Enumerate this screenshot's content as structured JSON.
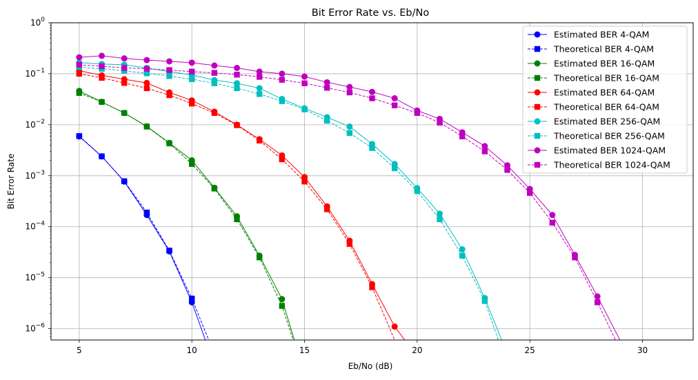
{
  "chart_data": {
    "type": "line",
    "title": "Bit Error Rate vs. Eb/No",
    "xlabel": "Eb/No (dB)",
    "ylabel": "Bit Error Rate",
    "xscale": "linear",
    "yscale": "log",
    "xlim": [
      3.75,
      32.25
    ],
    "ylim": [
      6e-07,
      1
    ],
    "xticks": [
      5,
      10,
      15,
      20,
      25,
      30
    ],
    "yticks": [
      {
        "value": 1e-06,
        "base": "10",
        "exp": "−6"
      },
      {
        "value": 1e-05,
        "base": "10",
        "exp": "−5"
      },
      {
        "value": 0.0001,
        "base": "10",
        "exp": "−4"
      },
      {
        "value": 0.001,
        "base": "10",
        "exp": "−3"
      },
      {
        "value": 0.01,
        "base": "10",
        "exp": "−2"
      },
      {
        "value": 0.1,
        "base": "10",
        "exp": "−1"
      },
      {
        "value": 1,
        "base": "10",
        "exp": "0"
      }
    ],
    "grid": true,
    "legend_position": "top-right",
    "series": [
      {
        "name": "Estimated BER 4-QAM",
        "color": "#0000ff",
        "dash": "solid",
        "marker": "circle",
        "x": [
          5,
          6,
          7,
          8,
          9,
          10,
          10.6
        ],
        "y": [
          0.0059,
          0.0024,
          0.00077,
          0.00017,
          3.3e-05,
          3.3e-06,
          6e-07
        ]
      },
      {
        "name": "Theoretical BER 4-QAM",
        "color": "#0000ff",
        "dash": "dashed",
        "marker": "square",
        "x": [
          5,
          6,
          7,
          8,
          9,
          10,
          10.75
        ],
        "y": [
          0.006,
          0.0024,
          0.00078,
          0.00019,
          3.4e-05,
          3.9e-06,
          6e-07
        ]
      },
      {
        "name": "Estimated BER 16-QAM",
        "color": "#008000",
        "dash": "solid",
        "marker": "circle",
        "x": [
          5,
          6,
          7,
          8,
          9,
          10,
          11,
          12,
          13,
          14,
          14.55
        ],
        "y": [
          0.046,
          0.028,
          0.017,
          0.0093,
          0.0044,
          0.002,
          0.00058,
          0.00016,
          2.7e-05,
          3.8e-06,
          6e-07
        ]
      },
      {
        "name": "Theoretical BER 16-QAM",
        "color": "#008000",
        "dash": "dashed",
        "marker": "square",
        "x": [
          5,
          6,
          7,
          8,
          9,
          10,
          11,
          12,
          13,
          14,
          14.5
        ],
        "y": [
          0.042,
          0.028,
          0.017,
          0.0092,
          0.0043,
          0.0017,
          0.00056,
          0.00014,
          2.5e-05,
          2.8e-06,
          6e-07
        ]
      },
      {
        "name": "Estimated BER 64-QAM",
        "color": "#ff0000",
        "dash": "solid",
        "marker": "circle",
        "x": [
          5,
          6,
          7,
          8,
          9,
          10,
          11,
          12,
          13,
          14,
          15,
          16,
          17,
          18,
          19,
          19.45
        ],
        "y": [
          0.115,
          0.093,
          0.078,
          0.066,
          0.043,
          0.03,
          0.018,
          0.01,
          0.0052,
          0.0025,
          0.00094,
          0.00025,
          5.3e-05,
          7.5e-06,
          1.1e-06,
          6e-07
        ]
      },
      {
        "name": "Theoretical BER 64-QAM",
        "color": "#ff0000",
        "dash": "dashed",
        "marker": "square",
        "x": [
          5,
          6,
          7,
          8,
          9,
          10,
          11,
          12,
          13,
          14,
          15,
          16,
          17,
          18,
          19
        ],
        "y": [
          0.1,
          0.083,
          0.066,
          0.052,
          0.038,
          0.026,
          0.017,
          0.0098,
          0.0049,
          0.0021,
          0.00077,
          0.00022,
          4.6e-05,
          6.5e-06,
          6e-07
        ]
      },
      {
        "name": "Estimated BER 256-QAM",
        "color": "#00bfbf",
        "dash": "solid",
        "marker": "circle",
        "x": [
          5,
          6,
          7,
          8,
          9,
          10,
          11,
          12,
          13,
          14,
          15,
          16,
          17,
          18,
          19,
          20,
          21,
          22,
          23,
          23.75
        ],
        "y": [
          0.165,
          0.155,
          0.15,
          0.13,
          0.11,
          0.095,
          0.075,
          0.065,
          0.052,
          0.032,
          0.021,
          0.014,
          0.0092,
          0.0042,
          0.0017,
          0.00057,
          0.00018,
          3.6e-05,
          4e-06,
          6e-07
        ]
      },
      {
        "name": "Theoretical BER 256-QAM",
        "color": "#00bfbf",
        "dash": "dashed",
        "marker": "square",
        "x": [
          5,
          6,
          7,
          8,
          9,
          10,
          11,
          12,
          13,
          14,
          15,
          16,
          17,
          18,
          19,
          20,
          21,
          22,
          23,
          23.6
        ],
        "y": [
          0.135,
          0.125,
          0.114,
          0.102,
          0.09,
          0.078,
          0.065,
          0.052,
          0.04,
          0.029,
          0.02,
          0.012,
          0.0069,
          0.0035,
          0.0014,
          0.0005,
          0.00014,
          2.7e-05,
          3.5e-06,
          6e-07
        ]
      },
      {
        "name": "Estimated BER 1024-QAM",
        "color": "#bf00bf",
        "dash": "solid",
        "marker": "circle",
        "x": [
          5,
          6,
          7,
          8,
          9,
          10,
          11,
          12,
          13,
          14,
          15,
          16,
          17,
          18,
          19,
          20,
          21,
          22,
          23,
          24,
          25,
          26,
          27,
          28,
          29
        ],
        "y": [
          0.21,
          0.225,
          0.2,
          0.185,
          0.175,
          0.165,
          0.145,
          0.13,
          0.11,
          0.1,
          0.088,
          0.068,
          0.055,
          0.044,
          0.033,
          0.019,
          0.013,
          0.0071,
          0.0038,
          0.0016,
          0.00055,
          0.00017,
          2.8e-05,
          4.3e-06,
          6e-07
        ]
      },
      {
        "name": "Theoretical BER 1024-QAM",
        "color": "#bf00bf",
        "dash": "dashed",
        "marker": "square",
        "x": [
          5,
          6,
          7,
          8,
          9,
          10,
          11,
          12,
          13,
          14,
          15,
          16,
          17,
          18,
          19,
          20,
          21,
          22,
          23,
          24,
          25,
          26,
          27,
          28,
          28.8
        ],
        "y": [
          0.15,
          0.14,
          0.13,
          0.125,
          0.118,
          0.11,
          0.104,
          0.096,
          0.087,
          0.076,
          0.065,
          0.053,
          0.043,
          0.033,
          0.024,
          0.017,
          0.011,
          0.0059,
          0.003,
          0.0013,
          0.00046,
          0.00012,
          2.5e-05,
          3.3e-06,
          6e-07
        ]
      }
    ]
  }
}
